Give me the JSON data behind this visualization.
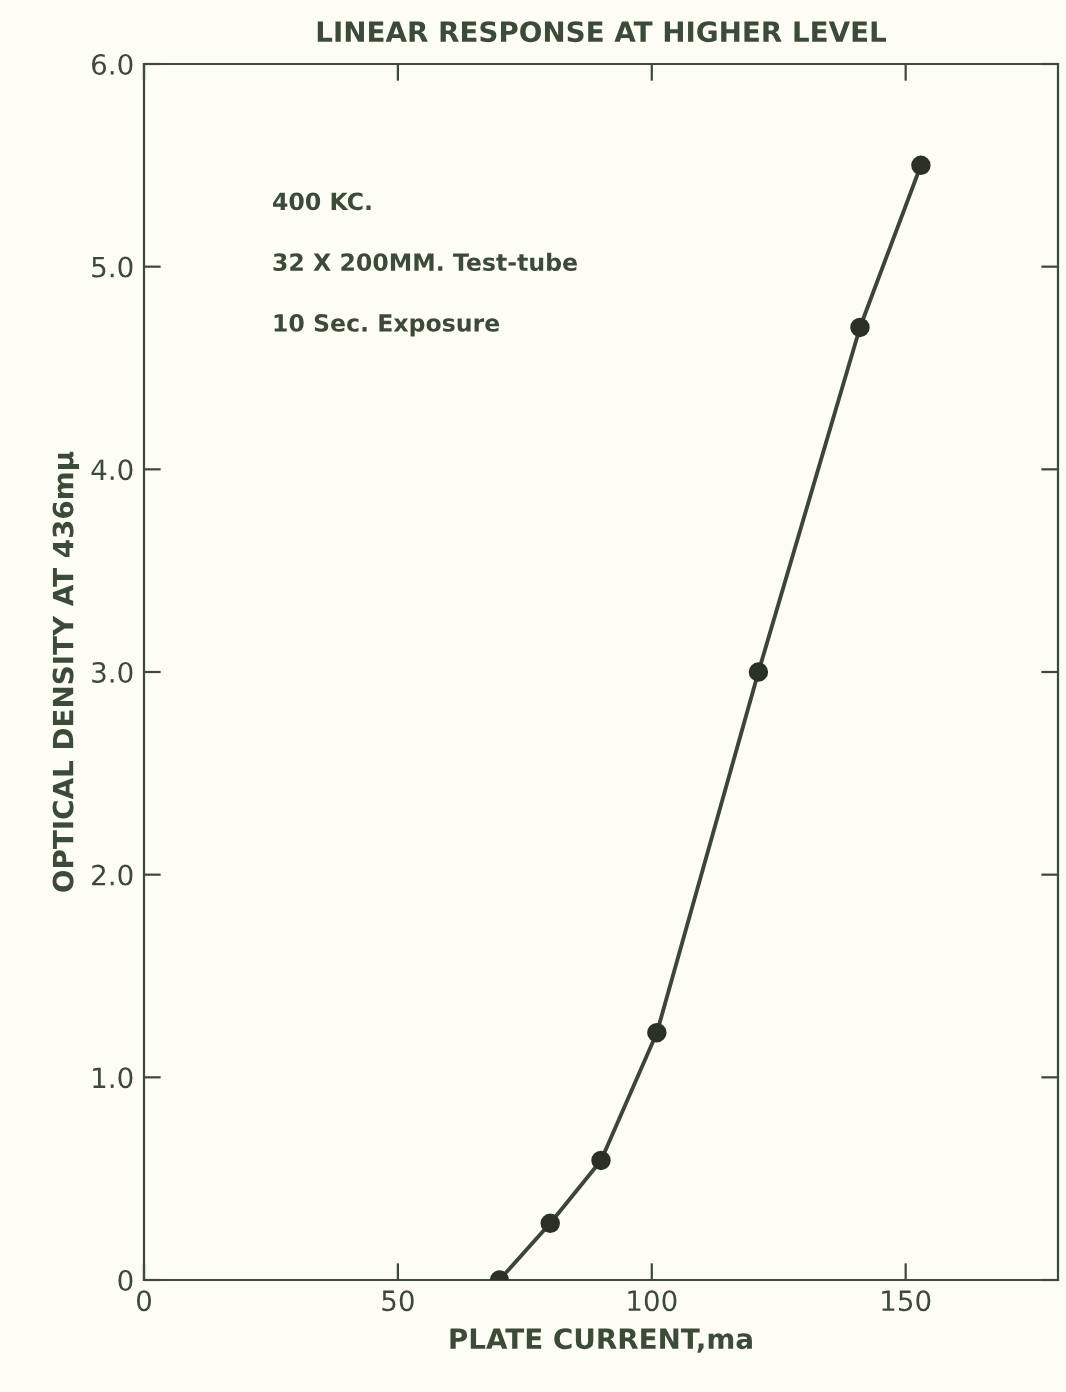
{
  "chart_data": {
    "type": "scatter",
    "title": "LINEAR RESPONSE AT HIGHER LEVEL",
    "xlabel": "PLATE CURRENT,ma",
    "ylabel": "OPTICAL DENSITY AT 436mμ",
    "annotations": [
      "400 KC.",
      "32 X 200MM. Test-tube",
      "10 Sec. Exposure"
    ],
    "series": [
      {
        "type": "line",
        "color": "#3c4638",
        "x": [
          70,
          80,
          90,
          101,
          121,
          141,
          153
        ],
        "values": [
          0,
          0.28,
          0.59,
          1.22,
          3.0,
          4.7,
          5.5
        ],
        "marker": "none"
      },
      {
        "color": "#2a3226",
        "x": [
          70,
          80,
          90,
          101,
          121,
          141,
          153
        ],
        "values": [
          0,
          0.28,
          0.59,
          1.22,
          3.0,
          4.7,
          5.5
        ],
        "marker": "circle"
      }
    ],
    "xlim": [
      0,
      180
    ],
    "xticks": [
      0,
      50,
      100,
      150
    ],
    "ylim": [
      0,
      6
    ],
    "yticks": [
      0,
      {
        "value": 1,
        "label": "1.0"
      },
      {
        "value": 2,
        "label": "2.0"
      },
      {
        "value": 3,
        "label": "3.0"
      },
      {
        "value": 4,
        "label": "4.0"
      },
      {
        "value": 5,
        "label": "5.0"
      },
      {
        "value": 6,
        "label": "6.0"
      }
    ],
    "grid": false,
    "legend": false
  }
}
